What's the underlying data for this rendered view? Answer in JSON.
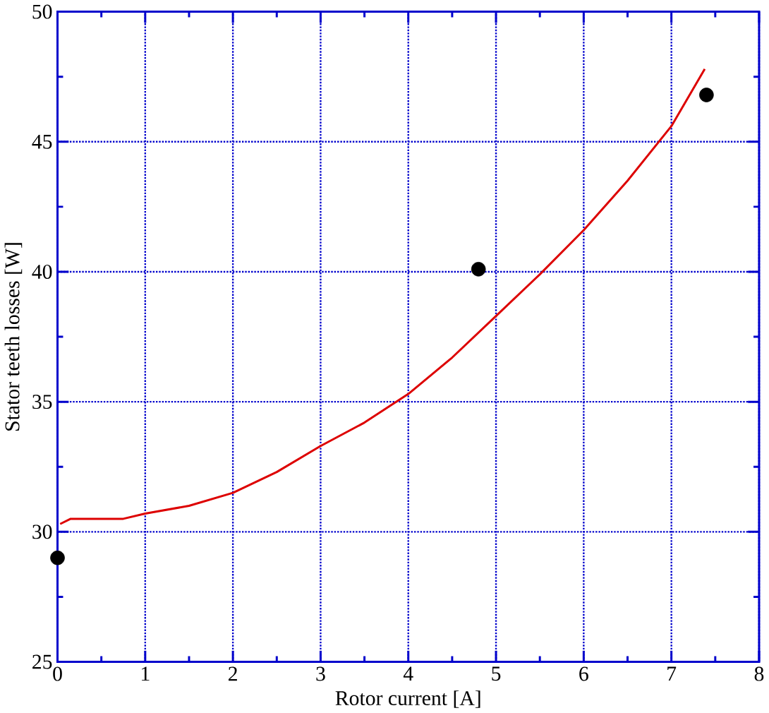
{
  "chart_data": {
    "type": "line",
    "xlabel": "Rotor current [A]",
    "ylabel": "Stator teeth losses [W]",
    "xlim": [
      0,
      8
    ],
    "ylim": [
      25,
      50
    ],
    "xticks": [
      0,
      1,
      2,
      3,
      4,
      5,
      6,
      7,
      8
    ],
    "yticks": [
      25,
      30,
      35,
      40,
      45,
      50
    ],
    "grid": true,
    "series": [
      {
        "color": "#dd0000",
        "marker": "none",
        "x": [
          0.03,
          0.15,
          0.4,
          0.75,
          1.0,
          1.5,
          2.0,
          2.5,
          3.0,
          3.5,
          4.0,
          4.5,
          5.0,
          5.5,
          6.0,
          6.5,
          7.0,
          7.38
        ],
        "values": [
          30.3,
          30.5,
          30.5,
          30.5,
          30.7,
          31.0,
          31.5,
          32.3,
          33.3,
          34.2,
          35.3,
          36.7,
          38.3,
          39.9,
          41.6,
          43.5,
          45.6,
          47.8
        ]
      },
      {
        "type": "scatter",
        "color": "#000000",
        "marker": "circle",
        "x": [
          0,
          4.8,
          7.4
        ],
        "values": [
          29.0,
          40.1,
          46.8
        ]
      }
    ]
  }
}
